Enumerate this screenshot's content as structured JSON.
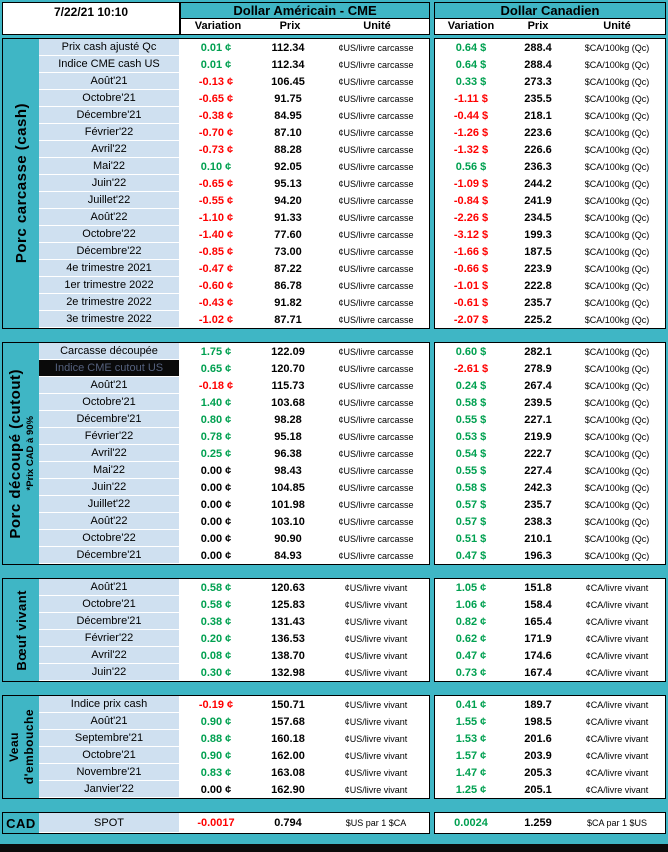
{
  "header": {
    "timestamp": "7/22/21 10:10",
    "us_title": "Dollar Américain - CME",
    "ca_title": "Dollar Canadien",
    "col_variation": "Variation",
    "col_prix": "Prix",
    "col_unite": "Unité"
  },
  "colors": {
    "teal": "#3FB6C5",
    "label_blue": "#CFE0F0",
    "positive": "#00A050",
    "negative": "#FF0000"
  },
  "sections": [
    {
      "id": "porc-carcasse",
      "band_lines": [
        "Porc carcasse (cash)"
      ],
      "rows": [
        {
          "label": "Prix cash ajusté Qc",
          "us_var": "0.01 ¢",
          "us_prix": "112.34",
          "us_unit": "¢US/livre carcasse",
          "ca_var": "0.64 $",
          "ca_prix": "288.4",
          "ca_unit": "$CA/100kg (Qc)"
        },
        {
          "label": "Indice CME cash US",
          "us_var": "0.01 ¢",
          "us_prix": "112.34",
          "us_unit": "¢US/livre carcasse",
          "ca_var": "0.64 $",
          "ca_prix": "288.4",
          "ca_unit": "$CA/100kg (Qc)"
        },
        {
          "label": "Août'21",
          "us_var": "-0.13 ¢",
          "us_prix": "106.45",
          "us_unit": "¢US/livre carcasse",
          "ca_var": "0.33 $",
          "ca_prix": "273.3",
          "ca_unit": "$CA/100kg (Qc)"
        },
        {
          "label": "Octobre'21",
          "us_var": "-0.65 ¢",
          "us_prix": "91.75",
          "us_unit": "¢US/livre carcasse",
          "ca_var": "-1.11 $",
          "ca_prix": "235.5",
          "ca_unit": "$CA/100kg (Qc)"
        },
        {
          "label": "Décembre'21",
          "us_var": "-0.38 ¢",
          "us_prix": "84.95",
          "us_unit": "¢US/livre carcasse",
          "ca_var": "-0.44 $",
          "ca_prix": "218.1",
          "ca_unit": "$CA/100kg (Qc)"
        },
        {
          "label": "Février'22",
          "us_var": "-0.70 ¢",
          "us_prix": "87.10",
          "us_unit": "¢US/livre carcasse",
          "ca_var": "-1.26 $",
          "ca_prix": "223.6",
          "ca_unit": "$CA/100kg (Qc)"
        },
        {
          "label": "Avril'22",
          "us_var": "-0.73 ¢",
          "us_prix": "88.28",
          "us_unit": "¢US/livre carcasse",
          "ca_var": "-1.32 $",
          "ca_prix": "226.6",
          "ca_unit": "$CA/100kg (Qc)"
        },
        {
          "label": "Mai'22",
          "us_var": "0.10 ¢",
          "us_prix": "92.05",
          "us_unit": "¢US/livre carcasse",
          "ca_var": "0.56 $",
          "ca_prix": "236.3",
          "ca_unit": "$CA/100kg (Qc)"
        },
        {
          "label": "Juin'22",
          "us_var": "-0.65 ¢",
          "us_prix": "95.13",
          "us_unit": "¢US/livre carcasse",
          "ca_var": "-1.09 $",
          "ca_prix": "244.2",
          "ca_unit": "$CA/100kg (Qc)"
        },
        {
          "label": "Juillet'22",
          "us_var": "-0.55 ¢",
          "us_prix": "94.20",
          "us_unit": "¢US/livre carcasse",
          "ca_var": "-0.84 $",
          "ca_prix": "241.9",
          "ca_unit": "$CA/100kg (Qc)"
        },
        {
          "label": "Août'22",
          "us_var": "-1.10 ¢",
          "us_prix": "91.33",
          "us_unit": "¢US/livre carcasse",
          "ca_var": "-2.26 $",
          "ca_prix": "234.5",
          "ca_unit": "$CA/100kg (Qc)"
        },
        {
          "label": "Octobre'22",
          "us_var": "-1.40 ¢",
          "us_prix": "77.60",
          "us_unit": "¢US/livre carcasse",
          "ca_var": "-3.12 $",
          "ca_prix": "199.3",
          "ca_unit": "$CA/100kg (Qc)"
        },
        {
          "label": "Décembre'22",
          "us_var": "-0.85 ¢",
          "us_prix": "73.00",
          "us_unit": "¢US/livre carcasse",
          "ca_var": "-1.66 $",
          "ca_prix": "187.5",
          "ca_unit": "$CA/100kg (Qc)"
        },
        {
          "label": "4e trimestre 2021",
          "us_var": "-0.47 ¢",
          "us_prix": "87.22",
          "us_unit": "¢US/livre carcasse",
          "ca_var": "-0.66 $",
          "ca_prix": "223.9",
          "ca_unit": "$CA/100kg (Qc)"
        },
        {
          "label": "1er trimestre 2022",
          "us_var": "-0.60 ¢",
          "us_prix": "86.78",
          "us_unit": "¢US/livre carcasse",
          "ca_var": "-1.01 $",
          "ca_prix": "222.8",
          "ca_unit": "$CA/100kg (Qc)"
        },
        {
          "label": "2e trimestre 2022",
          "us_var": "-0.43 ¢",
          "us_prix": "91.82",
          "us_unit": "¢US/livre carcasse",
          "ca_var": "-0.61 $",
          "ca_prix": "235.7",
          "ca_unit": "$CA/100kg (Qc)"
        },
        {
          "label": "3e trimestre 2022",
          "us_var": "-1.02 ¢",
          "us_prix": "87.71",
          "us_unit": "¢US/livre carcasse",
          "ca_var": "-2.07 $",
          "ca_prix": "225.2",
          "ca_unit": "$CA/100kg (Qc)"
        }
      ]
    },
    {
      "id": "porc-decoupe",
      "band_lines": [
        "Porc découpé (cutout)"
      ],
      "band_sub": "*Prix CAD à 90%",
      "rows": [
        {
          "label": "Carcasse découpée",
          "us_var": "1.75 ¢",
          "us_prix": "122.09",
          "us_unit": "¢US/livre carcasse",
          "ca_var": "0.60 $",
          "ca_prix": "282.1",
          "ca_unit": "$CA/100kg (Qc)"
        },
        {
          "label": "Indice CME cutout US",
          "highlight": true,
          "us_var": "0.65 ¢",
          "us_prix": "120.70",
          "us_unit": "¢US/livre carcasse",
          "ca_var": "-2.61 $",
          "ca_prix": "278.9",
          "ca_unit": "$CA/100kg (Qc)"
        },
        {
          "label": "Août'21",
          "us_var": "-0.18 ¢",
          "us_prix": "115.73",
          "us_unit": "¢US/livre carcasse",
          "ca_var": "0.24 $",
          "ca_prix": "267.4",
          "ca_unit": "$CA/100kg (Qc)"
        },
        {
          "label": "Octobre'21",
          "us_var": "1.40 ¢",
          "us_prix": "103.68",
          "us_unit": "¢US/livre carcasse",
          "ca_var": "0.58 $",
          "ca_prix": "239.5",
          "ca_unit": "$CA/100kg (Qc)"
        },
        {
          "label": "Décembre'21",
          "us_var": "0.80 ¢",
          "us_prix": "98.28",
          "us_unit": "¢US/livre carcasse",
          "ca_var": "0.55 $",
          "ca_prix": "227.1",
          "ca_unit": "$CA/100kg (Qc)"
        },
        {
          "label": "Février'22",
          "us_var": "0.78 ¢",
          "us_prix": "95.18",
          "us_unit": "¢US/livre carcasse",
          "ca_var": "0.53 $",
          "ca_prix": "219.9",
          "ca_unit": "$CA/100kg (Qc)"
        },
        {
          "label": "Avril'22",
          "us_var": "0.25 ¢",
          "us_prix": "96.38",
          "us_unit": "¢US/livre carcasse",
          "ca_var": "0.54 $",
          "ca_prix": "222.7",
          "ca_unit": "$CA/100kg (Qc)"
        },
        {
          "label": "Mai'22",
          "us_var": "0.00 ¢",
          "us_prix": "98.43",
          "us_unit": "¢US/livre carcasse",
          "ca_var": "0.55 $",
          "ca_prix": "227.4",
          "ca_unit": "$CA/100kg (Qc)"
        },
        {
          "label": "Juin'22",
          "us_var": "0.00 ¢",
          "us_prix": "104.85",
          "us_unit": "¢US/livre carcasse",
          "ca_var": "0.58 $",
          "ca_prix": "242.3",
          "ca_unit": "$CA/100kg (Qc)"
        },
        {
          "label": "Juillet'22",
          "us_var": "0.00 ¢",
          "us_prix": "101.98",
          "us_unit": "¢US/livre carcasse",
          "ca_var": "0.57 $",
          "ca_prix": "235.7",
          "ca_unit": "$CA/100kg (Qc)"
        },
        {
          "label": "Août'22",
          "us_var": "0.00 ¢",
          "us_prix": "103.10",
          "us_unit": "¢US/livre carcasse",
          "ca_var": "0.57 $",
          "ca_prix": "238.3",
          "ca_unit": "$CA/100kg (Qc)"
        },
        {
          "label": "Octobre'22",
          "us_var": "0.00 ¢",
          "us_prix": "90.90",
          "us_unit": "¢US/livre carcasse",
          "ca_var": "0.51 $",
          "ca_prix": "210.1",
          "ca_unit": "$CA/100kg (Qc)"
        },
        {
          "label": "Décembre'21",
          "us_var": "0.00 ¢",
          "us_prix": "84.93",
          "us_unit": "¢US/livre carcasse",
          "ca_var": "0.47 $",
          "ca_prix": "196.3",
          "ca_unit": "$CA/100kg (Qc)"
        }
      ]
    },
    {
      "id": "boeuf",
      "band_lines": [
        "Bœuf vivant"
      ],
      "rows": [
        {
          "label": "Août'21",
          "us_var": "0.58 ¢",
          "us_prix": "120.63",
          "us_unit": "¢US/livre vivant",
          "ca_var": "1.05 ¢",
          "ca_prix": "151.8",
          "ca_unit": "¢CA/livre vivant"
        },
        {
          "label": "Octobre'21",
          "us_var": "0.58 ¢",
          "us_prix": "125.83",
          "us_unit": "¢US/livre vivant",
          "ca_var": "1.06 ¢",
          "ca_prix": "158.4",
          "ca_unit": "¢CA/livre vivant"
        },
        {
          "label": "Décembre'21",
          "us_var": "0.38 ¢",
          "us_prix": "131.43",
          "us_unit": "¢US/livre vivant",
          "ca_var": "0.82 ¢",
          "ca_prix": "165.4",
          "ca_unit": "¢CA/livre vivant"
        },
        {
          "label": "Février'22",
          "us_var": "0.20 ¢",
          "us_prix": "136.53",
          "us_unit": "¢US/livre vivant",
          "ca_var": "0.62 ¢",
          "ca_prix": "171.9",
          "ca_unit": "¢CA/livre vivant"
        },
        {
          "label": "Avril'22",
          "us_var": "0.08 ¢",
          "us_prix": "138.70",
          "us_unit": "¢US/livre vivant",
          "ca_var": "0.47 ¢",
          "ca_prix": "174.6",
          "ca_unit": "¢CA/livre vivant"
        },
        {
          "label": "Juin'22",
          "us_var": "0.30 ¢",
          "us_prix": "132.98",
          "us_unit": "¢US/livre vivant",
          "ca_var": "0.73 ¢",
          "ca_prix": "167.4",
          "ca_unit": "¢CA/livre vivant"
        }
      ]
    },
    {
      "id": "veau",
      "band_lines": [
        "Veau",
        "d'embouche"
      ],
      "rows": [
        {
          "label": "Indice prix cash",
          "us_var": "-0.19 ¢",
          "us_prix": "150.71",
          "us_unit": "¢US/livre vivant",
          "ca_var": "0.41 ¢",
          "ca_prix": "189.7",
          "ca_unit": "¢CA/livre vivant"
        },
        {
          "label": "Août'21",
          "us_var": "0.90 ¢",
          "us_prix": "157.68",
          "us_unit": "¢US/livre vivant",
          "ca_var": "1.55 ¢",
          "ca_prix": "198.5",
          "ca_unit": "¢CA/livre vivant"
        },
        {
          "label": "Septembre'21",
          "us_var": "0.88 ¢",
          "us_prix": "160.18",
          "us_unit": "¢US/livre vivant",
          "ca_var": "1.53 ¢",
          "ca_prix": "201.6",
          "ca_unit": "¢CA/livre vivant"
        },
        {
          "label": "Octobre'21",
          "us_var": "0.90 ¢",
          "us_prix": "162.00",
          "us_unit": "¢US/livre vivant",
          "ca_var": "1.57 ¢",
          "ca_prix": "203.9",
          "ca_unit": "¢CA/livre vivant"
        },
        {
          "label": "Novembre'21",
          "us_var": "0.83 ¢",
          "us_prix": "163.08",
          "us_unit": "¢US/livre vivant",
          "ca_var": "1.47 ¢",
          "ca_prix": "205.3",
          "ca_unit": "¢CA/livre vivant"
        },
        {
          "label": "Janvier'22",
          "us_var": "0.00 ¢",
          "us_prix": "162.90",
          "us_unit": "¢US/livre vivant",
          "ca_var": "1.25 ¢",
          "ca_prix": "205.1",
          "ca_unit": "¢CA/livre vivant"
        }
      ]
    },
    {
      "id": "cad",
      "band_lines": [
        "CAD"
      ],
      "band_horizontal": true,
      "rows": [
        {
          "label": "SPOT",
          "us_var": "-0.0017",
          "us_prix": "0.794",
          "us_unit": "$US par 1 $CA",
          "ca_var": "0.0024",
          "ca_prix": "1.259",
          "ca_unit": "$CA par 1 $US"
        }
      ]
    }
  ]
}
